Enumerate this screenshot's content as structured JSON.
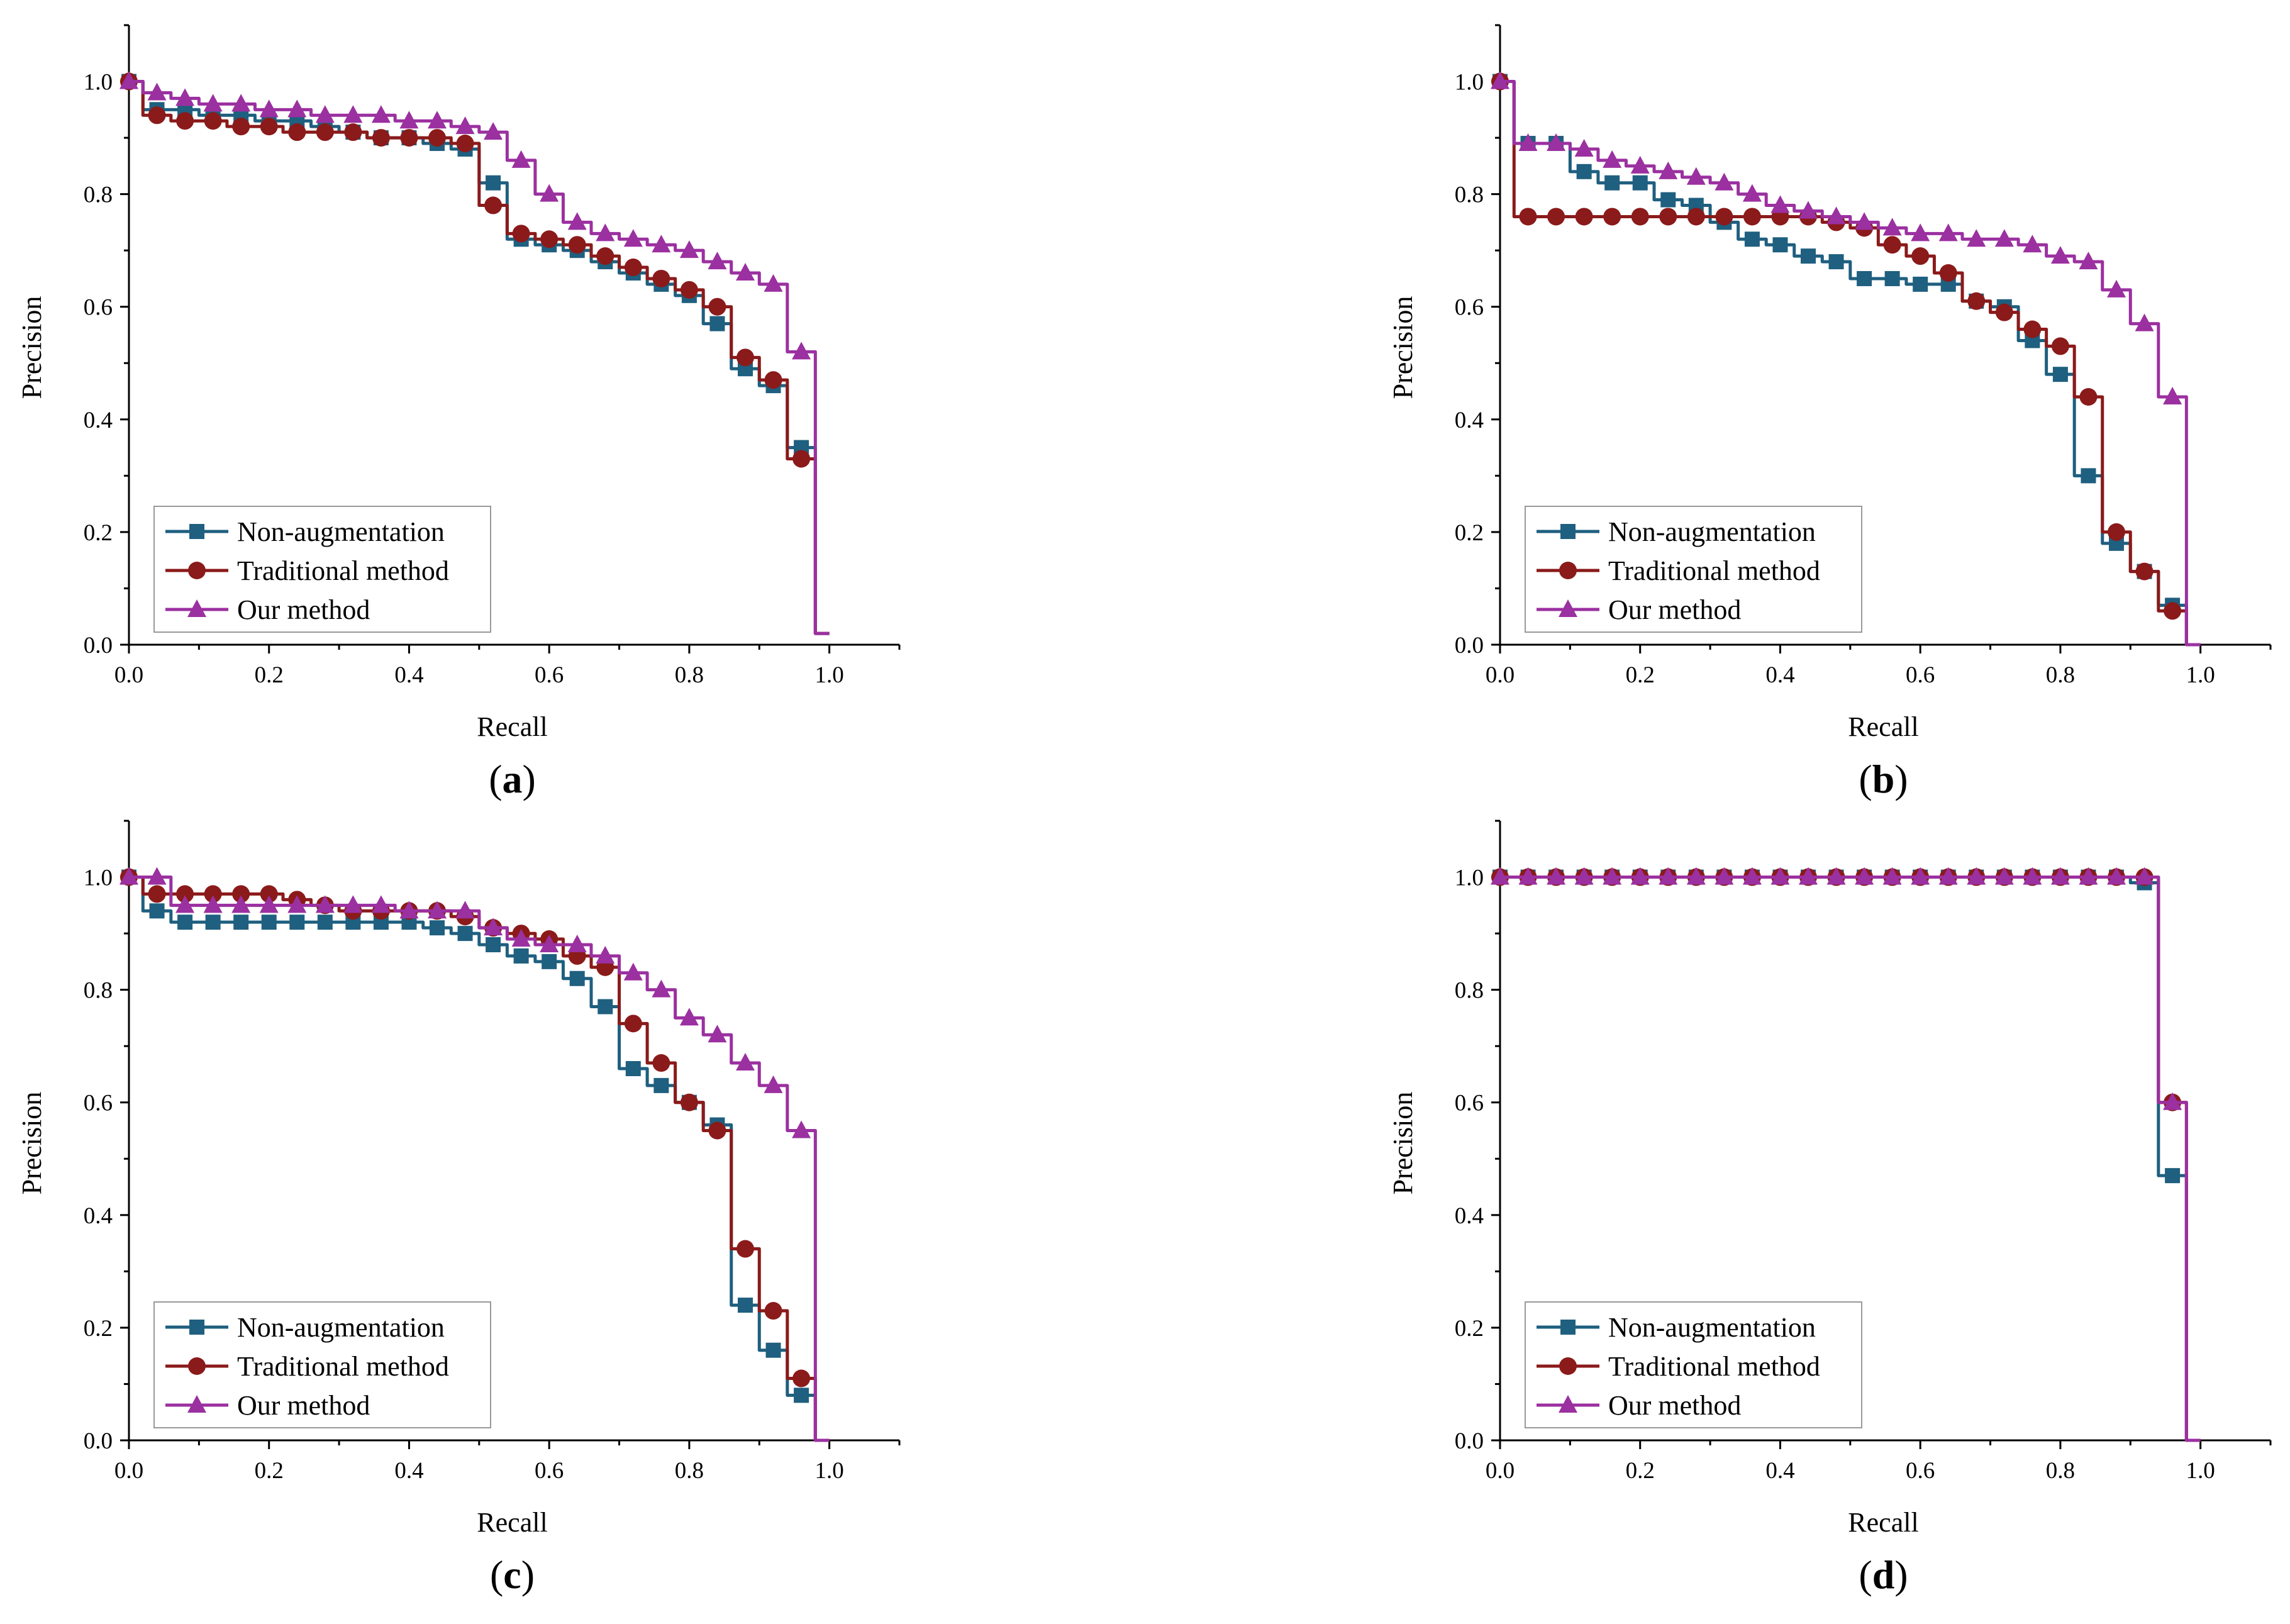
{
  "series_styles": [
    {
      "name": "Non-augmentation",
      "color": "#1f5f7f",
      "marker": "square"
    },
    {
      "name": "Traditional method",
      "color": "#8b1a1a",
      "marker": "circle"
    },
    {
      "name": "Our method",
      "color": "#9b30a0",
      "marker": "triangle"
    }
  ],
  "chart_data": [
    {
      "panel": "(a)",
      "panel_letter": "a",
      "type": "line",
      "xlabel": "Recall",
      "ylabel": "Precision",
      "xlim": [
        0,
        1.1
      ],
      "ylim": [
        0,
        1.1
      ],
      "xticks": [
        "0.0",
        "0.2",
        "0.4",
        "0.6",
        "0.8",
        "1.0"
      ],
      "yticks": [
        "0.0",
        "0.2",
        "0.4",
        "0.6",
        "0.8",
        "1.0"
      ],
      "legend_position": "bottom-left",
      "series": [
        {
          "name": "Non-augmentation",
          "x": [
            0,
            0.04,
            0.08,
            0.12,
            0.16,
            0.2,
            0.24,
            0.28,
            0.32,
            0.36,
            0.4,
            0.44,
            0.48,
            0.52,
            0.56,
            0.6,
            0.64,
            0.68,
            0.72,
            0.76,
            0.8,
            0.84,
            0.88,
            0.92,
            0.96,
            1.0
          ],
          "y": [
            1.0,
            0.95,
            0.95,
            0.94,
            0.94,
            0.93,
            0.93,
            0.92,
            0.91,
            0.9,
            0.9,
            0.89,
            0.88,
            0.82,
            0.72,
            0.71,
            0.7,
            0.68,
            0.66,
            0.64,
            0.62,
            0.57,
            0.49,
            0.46,
            0.35,
            0.02
          ]
        },
        {
          "name": "Traditional method",
          "x": [
            0,
            0.04,
            0.08,
            0.12,
            0.16,
            0.2,
            0.24,
            0.28,
            0.32,
            0.36,
            0.4,
            0.44,
            0.48,
            0.52,
            0.56,
            0.6,
            0.64,
            0.68,
            0.72,
            0.76,
            0.8,
            0.84,
            0.88,
            0.92,
            0.96,
            1.0
          ],
          "y": [
            1.0,
            0.94,
            0.93,
            0.93,
            0.92,
            0.92,
            0.91,
            0.91,
            0.91,
            0.9,
            0.9,
            0.9,
            0.89,
            0.78,
            0.73,
            0.72,
            0.71,
            0.69,
            0.67,
            0.65,
            0.63,
            0.6,
            0.51,
            0.47,
            0.33,
            0.02
          ]
        },
        {
          "name": "Our method",
          "x": [
            0,
            0.04,
            0.08,
            0.12,
            0.16,
            0.2,
            0.24,
            0.28,
            0.32,
            0.36,
            0.4,
            0.44,
            0.48,
            0.52,
            0.56,
            0.6,
            0.64,
            0.68,
            0.72,
            0.76,
            0.8,
            0.84,
            0.88,
            0.92,
            0.96,
            1.0
          ],
          "y": [
            1.0,
            0.98,
            0.97,
            0.96,
            0.96,
            0.95,
            0.95,
            0.94,
            0.94,
            0.94,
            0.93,
            0.93,
            0.92,
            0.91,
            0.86,
            0.8,
            0.75,
            0.73,
            0.72,
            0.71,
            0.7,
            0.68,
            0.66,
            0.64,
            0.52,
            0.02
          ]
        }
      ]
    },
    {
      "panel": "(b)",
      "panel_letter": "b",
      "type": "line",
      "xlabel": "Recall",
      "ylabel": "Precision",
      "xlim": [
        0,
        1.1
      ],
      "ylim": [
        0,
        1.1
      ],
      "xticks": [
        "0.0",
        "0.2",
        "0.4",
        "0.6",
        "0.8",
        "1.0"
      ],
      "yticks": [
        "0.0",
        "0.2",
        "0.4",
        "0.6",
        "0.8",
        "1.0"
      ],
      "legend_position": "bottom-left",
      "series": [
        {
          "name": "Non-augmentation",
          "x": [
            0,
            0.04,
            0.08,
            0.12,
            0.16,
            0.2,
            0.24,
            0.28,
            0.32,
            0.36,
            0.4,
            0.44,
            0.48,
            0.52,
            0.56,
            0.6,
            0.64,
            0.68,
            0.72,
            0.76,
            0.8,
            0.84,
            0.88,
            0.92,
            0.96,
            1.0
          ],
          "y": [
            1.0,
            0.89,
            0.89,
            0.84,
            0.82,
            0.82,
            0.79,
            0.78,
            0.75,
            0.72,
            0.71,
            0.69,
            0.68,
            0.65,
            0.65,
            0.64,
            0.64,
            0.61,
            0.6,
            0.54,
            0.48,
            0.3,
            0.18,
            0.13,
            0.07,
            0.0
          ]
        },
        {
          "name": "Traditional method",
          "x": [
            0,
            0.04,
            0.08,
            0.12,
            0.16,
            0.2,
            0.24,
            0.28,
            0.32,
            0.36,
            0.4,
            0.44,
            0.48,
            0.52,
            0.56,
            0.6,
            0.64,
            0.68,
            0.72,
            0.76,
            0.8,
            0.84,
            0.88,
            0.92,
            0.96,
            1.0
          ],
          "y": [
            1.0,
            0.76,
            0.76,
            0.76,
            0.76,
            0.76,
            0.76,
            0.76,
            0.76,
            0.76,
            0.76,
            0.76,
            0.75,
            0.74,
            0.71,
            0.69,
            0.66,
            0.61,
            0.59,
            0.56,
            0.53,
            0.44,
            0.2,
            0.13,
            0.06,
            0.0
          ]
        },
        {
          "name": "Our method",
          "x": [
            0,
            0.04,
            0.08,
            0.12,
            0.16,
            0.2,
            0.24,
            0.28,
            0.32,
            0.36,
            0.4,
            0.44,
            0.48,
            0.52,
            0.56,
            0.6,
            0.64,
            0.68,
            0.72,
            0.76,
            0.8,
            0.84,
            0.88,
            0.92,
            0.96,
            1.0
          ],
          "y": [
            1.0,
            0.89,
            0.89,
            0.88,
            0.86,
            0.85,
            0.84,
            0.83,
            0.82,
            0.8,
            0.78,
            0.77,
            0.76,
            0.75,
            0.74,
            0.73,
            0.73,
            0.72,
            0.72,
            0.71,
            0.69,
            0.68,
            0.63,
            0.57,
            0.44,
            0.0
          ]
        }
      ]
    },
    {
      "panel": "(c)",
      "panel_letter": "c",
      "type": "line",
      "xlabel": "Recall",
      "ylabel": "Precision",
      "xlim": [
        0,
        1.1
      ],
      "ylim": [
        0,
        1.1
      ],
      "xticks": [
        "0.0",
        "0.2",
        "0.4",
        "0.6",
        "0.8",
        "1.0"
      ],
      "yticks": [
        "0.0",
        "0.2",
        "0.4",
        "0.6",
        "0.8",
        "1.0"
      ],
      "legend_position": "bottom-left",
      "series": [
        {
          "name": "Non-augmentation",
          "x": [
            0,
            0.04,
            0.08,
            0.12,
            0.16,
            0.2,
            0.24,
            0.28,
            0.32,
            0.36,
            0.4,
            0.44,
            0.48,
            0.52,
            0.56,
            0.6,
            0.64,
            0.68,
            0.72,
            0.76,
            0.8,
            0.84,
            0.88,
            0.92,
            0.96,
            1.0
          ],
          "y": [
            1.0,
            0.94,
            0.92,
            0.92,
            0.92,
            0.92,
            0.92,
            0.92,
            0.92,
            0.92,
            0.92,
            0.91,
            0.9,
            0.88,
            0.86,
            0.85,
            0.82,
            0.77,
            0.66,
            0.63,
            0.6,
            0.56,
            0.24,
            0.16,
            0.08,
            0.0
          ]
        },
        {
          "name": "Traditional method",
          "x": [
            0,
            0.04,
            0.08,
            0.12,
            0.16,
            0.2,
            0.24,
            0.28,
            0.32,
            0.36,
            0.4,
            0.44,
            0.48,
            0.52,
            0.56,
            0.6,
            0.64,
            0.68,
            0.72,
            0.76,
            0.8,
            0.84,
            0.88,
            0.92,
            0.96,
            1.0
          ],
          "y": [
            1.0,
            0.97,
            0.97,
            0.97,
            0.97,
            0.97,
            0.96,
            0.95,
            0.94,
            0.94,
            0.94,
            0.94,
            0.93,
            0.91,
            0.9,
            0.89,
            0.86,
            0.84,
            0.74,
            0.67,
            0.6,
            0.55,
            0.34,
            0.23,
            0.11,
            0.0
          ]
        },
        {
          "name": "Our method",
          "x": [
            0,
            0.04,
            0.08,
            0.12,
            0.16,
            0.2,
            0.24,
            0.28,
            0.32,
            0.36,
            0.4,
            0.44,
            0.48,
            0.52,
            0.56,
            0.6,
            0.64,
            0.68,
            0.72,
            0.76,
            0.8,
            0.84,
            0.88,
            0.92,
            0.96,
            1.0
          ],
          "y": [
            1.0,
            1.0,
            0.95,
            0.95,
            0.95,
            0.95,
            0.95,
            0.95,
            0.95,
            0.95,
            0.94,
            0.94,
            0.94,
            0.91,
            0.89,
            0.88,
            0.88,
            0.86,
            0.83,
            0.8,
            0.75,
            0.72,
            0.67,
            0.63,
            0.55,
            0.0
          ]
        }
      ]
    },
    {
      "panel": "(d)",
      "panel_letter": "d",
      "type": "line",
      "xlabel": "Recall",
      "ylabel": "Precision",
      "xlim": [
        0,
        1.1
      ],
      "ylim": [
        0,
        1.1
      ],
      "xticks": [
        "0.0",
        "0.2",
        "0.4",
        "0.6",
        "0.8",
        "1.0"
      ],
      "yticks": [
        "0.0",
        "0.2",
        "0.4",
        "0.6",
        "0.8",
        "1.0"
      ],
      "legend_position": "bottom-left",
      "series": [
        {
          "name": "Non-augmentation",
          "x": [
            0,
            0.04,
            0.08,
            0.12,
            0.16,
            0.2,
            0.24,
            0.28,
            0.32,
            0.36,
            0.4,
            0.44,
            0.48,
            0.52,
            0.56,
            0.6,
            0.64,
            0.68,
            0.72,
            0.76,
            0.8,
            0.84,
            0.88,
            0.92,
            0.96,
            1.0
          ],
          "y": [
            1.0,
            1.0,
            1.0,
            1.0,
            1.0,
            1.0,
            1.0,
            1.0,
            1.0,
            1.0,
            1.0,
            1.0,
            1.0,
            1.0,
            1.0,
            1.0,
            1.0,
            1.0,
            1.0,
            1.0,
            1.0,
            1.0,
            1.0,
            0.99,
            0.47,
            0.0
          ]
        },
        {
          "name": "Traditional method",
          "x": [
            0,
            0.04,
            0.08,
            0.12,
            0.16,
            0.2,
            0.24,
            0.28,
            0.32,
            0.36,
            0.4,
            0.44,
            0.48,
            0.52,
            0.56,
            0.6,
            0.64,
            0.68,
            0.72,
            0.76,
            0.8,
            0.84,
            0.88,
            0.92,
            0.96,
            1.0
          ],
          "y": [
            1.0,
            1.0,
            1.0,
            1.0,
            1.0,
            1.0,
            1.0,
            1.0,
            1.0,
            1.0,
            1.0,
            1.0,
            1.0,
            1.0,
            1.0,
            1.0,
            1.0,
            1.0,
            1.0,
            1.0,
            1.0,
            1.0,
            1.0,
            1.0,
            0.6,
            0.0
          ]
        },
        {
          "name": "Our method",
          "x": [
            0,
            0.04,
            0.08,
            0.12,
            0.16,
            0.2,
            0.24,
            0.28,
            0.32,
            0.36,
            0.4,
            0.44,
            0.48,
            0.52,
            0.56,
            0.6,
            0.64,
            0.68,
            0.72,
            0.76,
            0.8,
            0.84,
            0.88,
            0.92,
            0.96,
            1.0
          ],
          "y": [
            1.0,
            1.0,
            1.0,
            1.0,
            1.0,
            1.0,
            1.0,
            1.0,
            1.0,
            1.0,
            1.0,
            1.0,
            1.0,
            1.0,
            1.0,
            1.0,
            1.0,
            1.0,
            1.0,
            1.0,
            1.0,
            1.0,
            1.0,
            1.0,
            0.6,
            0.0
          ]
        }
      ]
    }
  ]
}
